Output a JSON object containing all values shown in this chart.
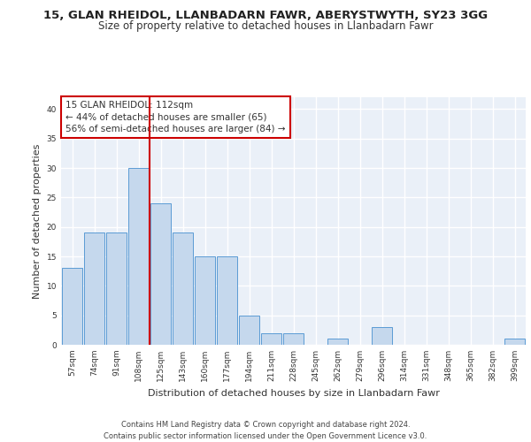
{
  "title_line1": "15, GLAN RHEIDOL, LLANBADARN FAWR, ABERYSTWYTH, SY23 3GG",
  "title_line2": "Size of property relative to detached houses in Llanbadarn Fawr",
  "xlabel": "Distribution of detached houses by size in Llanbadarn Fawr",
  "ylabel": "Number of detached properties",
  "categories": [
    "57sqm",
    "74sqm",
    "91sqm",
    "108sqm",
    "125sqm",
    "143sqm",
    "160sqm",
    "177sqm",
    "194sqm",
    "211sqm",
    "228sqm",
    "245sqm",
    "262sqm",
    "279sqm",
    "296sqm",
    "314sqm",
    "331sqm",
    "348sqm",
    "365sqm",
    "382sqm",
    "399sqm"
  ],
  "values": [
    13,
    19,
    19,
    30,
    24,
    19,
    15,
    15,
    5,
    2,
    2,
    0,
    1,
    0,
    3,
    0,
    0,
    0,
    0,
    0,
    1
  ],
  "bar_color": "#c5d8ed",
  "bar_edge_color": "#5b9bd5",
  "vline_x_index": 3,
  "vline_color": "#cc0000",
  "annotation_box_text": "15 GLAN RHEIDOL: 112sqm\n← 44% of detached houses are smaller (65)\n56% of semi-detached houses are larger (84) →",
  "annotation_box_color": "#cc0000",
  "ylim": [
    0,
    42
  ],
  "yticks": [
    0,
    5,
    10,
    15,
    20,
    25,
    30,
    35,
    40
  ],
  "background_color": "#eaf0f8",
  "grid_color": "#ffffff",
  "footer_text": "Contains HM Land Registry data © Crown copyright and database right 2024.\nContains public sector information licensed under the Open Government Licence v3.0.",
  "title_fontsize": 9.5,
  "subtitle_fontsize": 8.5,
  "xlabel_fontsize": 8,
  "ylabel_fontsize": 8,
  "tick_fontsize": 6.5,
  "annotation_fontsize": 7.5,
  "footer_fontsize": 6
}
